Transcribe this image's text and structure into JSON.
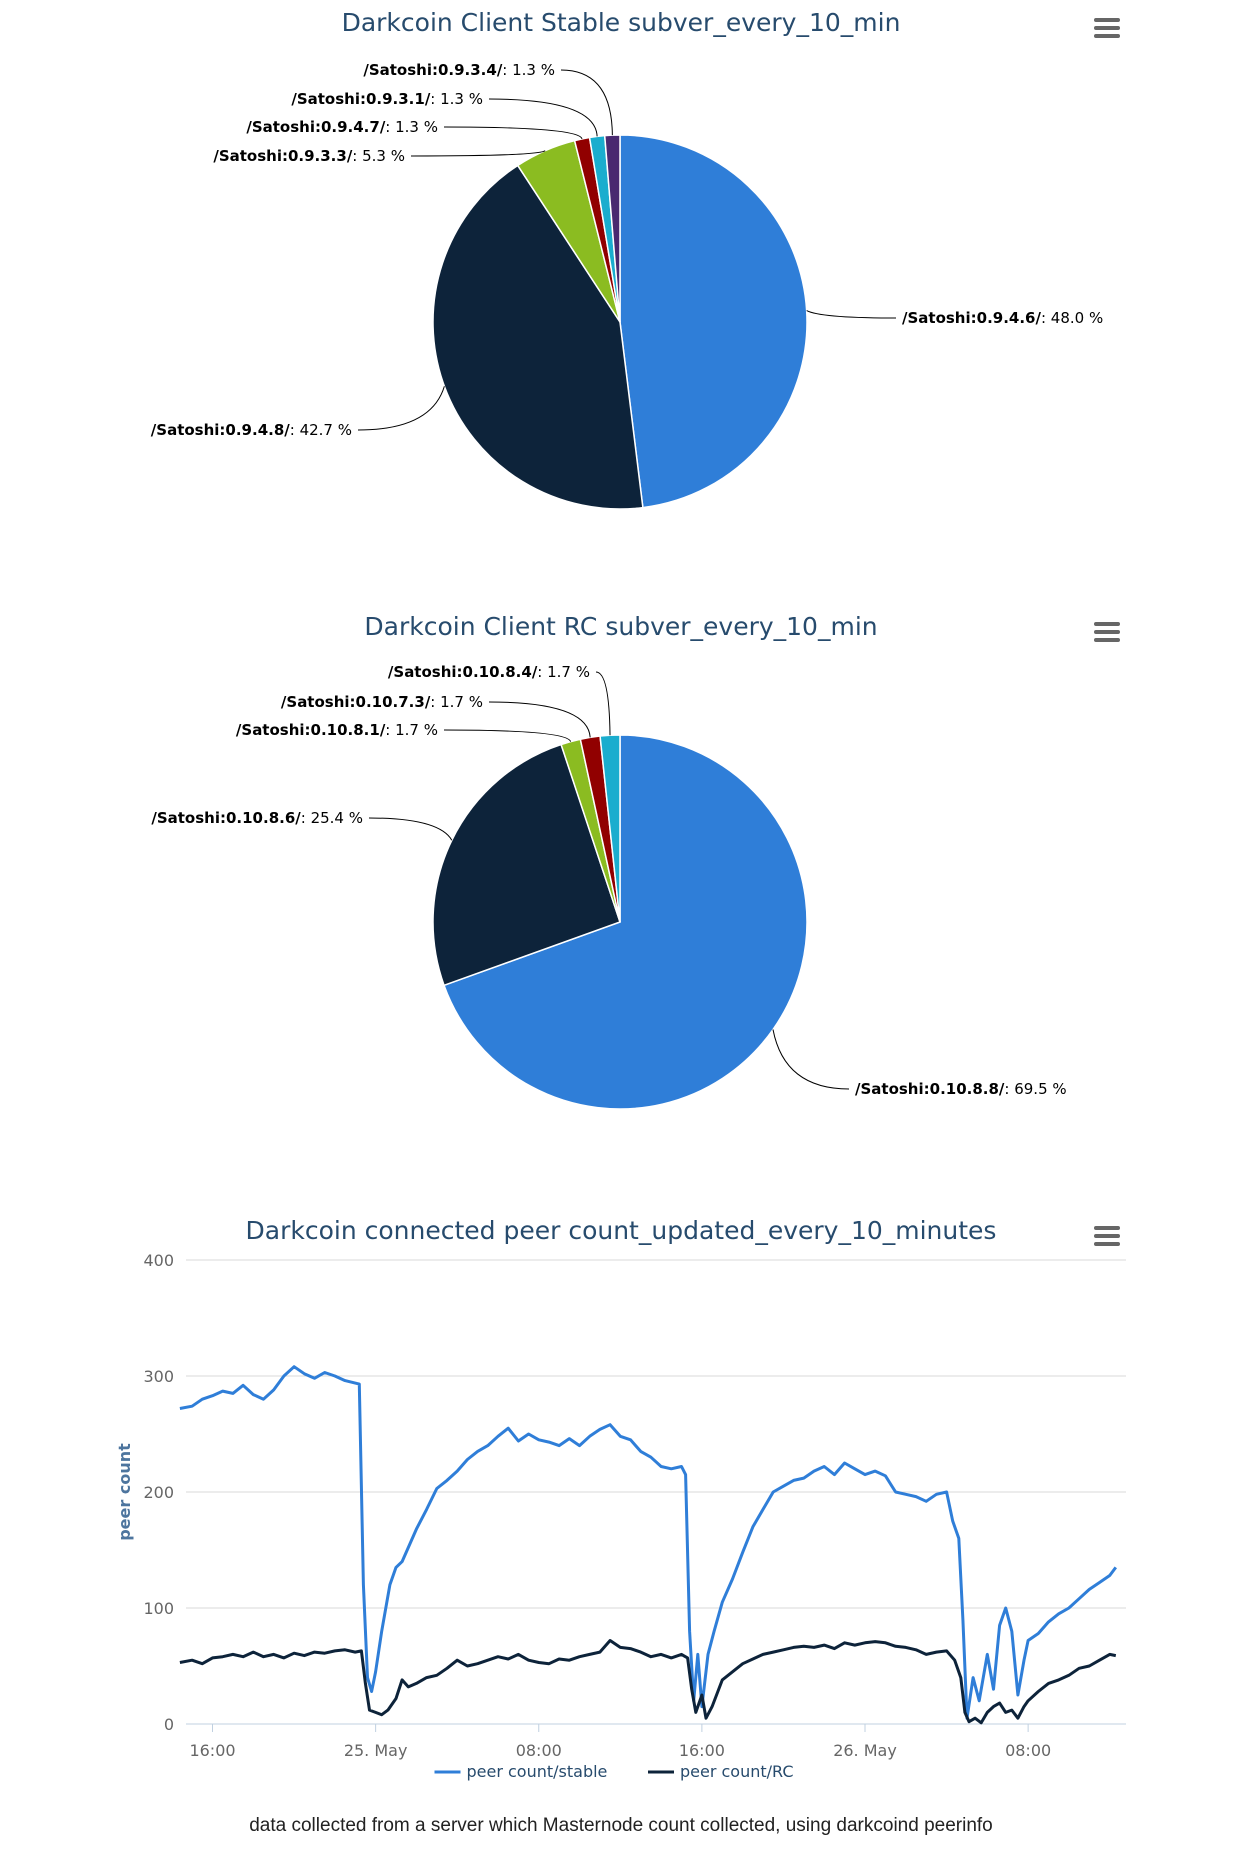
{
  "caption": "data collected from a server which Masternode count collected, using darkcoind peerinfo",
  "chart_data": [
    {
      "type": "pie",
      "title": "Darkcoin Client Stable subver_every_10_min",
      "labels": [
        "/Satoshi:0.9.4.6/",
        "/Satoshi:0.9.4.8/",
        "/Satoshi:0.9.3.3/",
        "/Satoshi:0.9.4.7/",
        "/Satoshi:0.9.3.1/",
        "/Satoshi:0.9.3.4/"
      ],
      "values": [
        48.0,
        42.7,
        5.3,
        1.3,
        1.3,
        1.3
      ],
      "value_labels": [
        "48.0 %",
        "42.7 %",
        "5.3 %",
        "1.3 %",
        "1.3 %",
        "1.3 %"
      ],
      "colors": [
        "#2f7ed8",
        "#0d233a",
        "#8bbc21",
        "#910000",
        "#1aadce",
        "#492970"
      ]
    },
    {
      "type": "pie",
      "title": "Darkcoin Client RC subver_every_10_min",
      "labels": [
        "/Satoshi:0.10.8.8/",
        "/Satoshi:0.10.8.6/",
        "/Satoshi:0.10.8.1/",
        "/Satoshi:0.10.7.3/",
        "/Satoshi:0.10.8.4/"
      ],
      "values": [
        69.5,
        25.4,
        1.7,
        1.7,
        1.7
      ],
      "value_labels": [
        "69.5 %",
        "25.4 %",
        "1.7 %",
        "1.7 %",
        "1.7 %"
      ],
      "colors": [
        "#2f7ed8",
        "#0d233a",
        "#8bbc21",
        "#910000",
        "#1aadce"
      ]
    },
    {
      "type": "line",
      "title": "Darkcoin connected peer count_updated_every_10_minutes",
      "ylabel": "peer count",
      "ylim": [
        0,
        400
      ],
      "yticks": [
        "0",
        "100",
        "200",
        "300",
        "400"
      ],
      "xlim": [
        -1.3,
        44.8
      ],
      "xticks": [
        {
          "v": 0,
          "label": "16:00"
        },
        {
          "v": 8,
          "label": "25. May"
        },
        {
          "v": 16,
          "label": "08:00"
        },
        {
          "v": 24,
          "label": "16:00"
        },
        {
          "v": 32,
          "label": "26. May"
        },
        {
          "v": 40,
          "label": "08:00"
        }
      ],
      "grid": true,
      "legend": "bottom-center",
      "series": [
        {
          "name": "peer count/stable",
          "color": "#2f7ed8",
          "points": [
            [
              -1.6,
              272
            ],
            [
              -1,
              274
            ],
            [
              -0.5,
              280
            ],
            [
              0,
              283
            ],
            [
              0.5,
              287
            ],
            [
              1,
              285
            ],
            [
              1.5,
              292
            ],
            [
              2,
              284
            ],
            [
              2.5,
              280
            ],
            [
              3,
              288
            ],
            [
              3.5,
              300
            ],
            [
              4,
              308
            ],
            [
              4.5,
              302
            ],
            [
              5,
              298
            ],
            [
              5.5,
              303
            ],
            [
              6,
              300
            ],
            [
              6.5,
              296
            ],
            [
              7.2,
              293
            ],
            [
              7.4,
              120
            ],
            [
              7.6,
              40
            ],
            [
              7.8,
              28
            ],
            [
              8,
              45
            ],
            [
              8.3,
              80
            ],
            [
              8.7,
              120
            ],
            [
              9,
              135
            ],
            [
              9.3,
              140
            ],
            [
              10,
              168
            ],
            [
              10.5,
              185
            ],
            [
              11,
              203
            ],
            [
              11.5,
              210
            ],
            [
              12,
              218
            ],
            [
              12.5,
              228
            ],
            [
              13,
              235
            ],
            [
              13.5,
              240
            ],
            [
              14,
              248
            ],
            [
              14.5,
              255
            ],
            [
              15,
              244
            ],
            [
              15.5,
              250
            ],
            [
              16,
              245
            ],
            [
              16.5,
              243
            ],
            [
              17,
              240
            ],
            [
              17.5,
              246
            ],
            [
              18,
              240
            ],
            [
              18.5,
              248
            ],
            [
              19,
              254
            ],
            [
              19.5,
              258
            ],
            [
              20,
              248
            ],
            [
              20.5,
              245
            ],
            [
              21,
              235
            ],
            [
              21.5,
              230
            ],
            [
              22,
              222
            ],
            [
              22.5,
              220
            ],
            [
              23,
              222
            ],
            [
              23.2,
              215
            ],
            [
              23.4,
              80
            ],
            [
              23.6,
              20
            ],
            [
              23.8,
              60
            ],
            [
              24,
              15
            ],
            [
              24.3,
              60
            ],
            [
              24.6,
              80
            ],
            [
              25,
              105
            ],
            [
              25.5,
              125
            ],
            [
              26,
              148
            ],
            [
              26.5,
              170
            ],
            [
              27,
              185
            ],
            [
              27.5,
              200
            ],
            [
              28,
              205
            ],
            [
              28.5,
              210
            ],
            [
              29,
              212
            ],
            [
              29.5,
              218
            ],
            [
              30,
              222
            ],
            [
              30.5,
              215
            ],
            [
              31,
              225
            ],
            [
              31.5,
              220
            ],
            [
              32,
              215
            ],
            [
              32.5,
              218
            ],
            [
              33,
              214
            ],
            [
              33.5,
              200
            ],
            [
              34,
              198
            ],
            [
              34.5,
              196
            ],
            [
              35,
              192
            ],
            [
              35.5,
              198
            ],
            [
              36,
              200
            ],
            [
              36.3,
              175
            ],
            [
              36.6,
              160
            ],
            [
              36.8,
              90
            ],
            [
              37,
              5
            ],
            [
              37.3,
              40
            ],
            [
              37.6,
              20
            ],
            [
              38,
              60
            ],
            [
              38.3,
              30
            ],
            [
              38.6,
              85
            ],
            [
              38.9,
              100
            ],
            [
              39.2,
              80
            ],
            [
              39.5,
              25
            ],
            [
              39.8,
              55
            ],
            [
              40,
              72
            ],
            [
              40.5,
              78
            ],
            [
              41,
              88
            ],
            [
              41.5,
              95
            ],
            [
              42,
              100
            ],
            [
              42.5,
              108
            ],
            [
              43,
              116
            ],
            [
              43.5,
              122
            ],
            [
              44,
              128
            ],
            [
              44.3,
              135
            ]
          ]
        },
        {
          "name": "peer count/RC",
          "color": "#0d233a",
          "points": [
            [
              -1.6,
              53
            ],
            [
              -1,
              55
            ],
            [
              -0.5,
              52
            ],
            [
              0,
              57
            ],
            [
              0.5,
              58
            ],
            [
              1,
              60
            ],
            [
              1.5,
              58
            ],
            [
              2,
              62
            ],
            [
              2.5,
              58
            ],
            [
              3,
              60
            ],
            [
              3.5,
              57
            ],
            [
              4,
              61
            ],
            [
              4.5,
              59
            ],
            [
              5,
              62
            ],
            [
              5.5,
              61
            ],
            [
              6,
              63
            ],
            [
              6.5,
              64
            ],
            [
              7,
              62
            ],
            [
              7.3,
              63
            ],
            [
              7.5,
              35
            ],
            [
              7.7,
              12
            ],
            [
              8,
              10
            ],
            [
              8.3,
              8
            ],
            [
              8.6,
              12
            ],
            [
              9,
              22
            ],
            [
              9.3,
              38
            ],
            [
              9.6,
              32
            ],
            [
              10,
              35
            ],
            [
              10.5,
              40
            ],
            [
              11,
              42
            ],
            [
              11.5,
              48
            ],
            [
              12,
              55
            ],
            [
              12.5,
              50
            ],
            [
              13,
              52
            ],
            [
              13.5,
              55
            ],
            [
              14,
              58
            ],
            [
              14.5,
              56
            ],
            [
              15,
              60
            ],
            [
              15.5,
              55
            ],
            [
              16,
              53
            ],
            [
              16.5,
              52
            ],
            [
              17,
              56
            ],
            [
              17.5,
              55
            ],
            [
              18,
              58
            ],
            [
              18.5,
              60
            ],
            [
              19,
              62
            ],
            [
              19.5,
              72
            ],
            [
              20,
              66
            ],
            [
              20.5,
              65
            ],
            [
              21,
              62
            ],
            [
              21.5,
              58
            ],
            [
              22,
              60
            ],
            [
              22.5,
              57
            ],
            [
              23,
              60
            ],
            [
              23.3,
              57
            ],
            [
              23.5,
              30
            ],
            [
              23.7,
              10
            ],
            [
              24,
              25
            ],
            [
              24.2,
              5
            ],
            [
              24.5,
              15
            ],
            [
              25,
              38
            ],
            [
              25.5,
              45
            ],
            [
              26,
              52
            ],
            [
              26.5,
              56
            ],
            [
              27,
              60
            ],
            [
              27.5,
              62
            ],
            [
              28,
              64
            ],
            [
              28.5,
              66
            ],
            [
              29,
              67
            ],
            [
              29.5,
              66
            ],
            [
              30,
              68
            ],
            [
              30.5,
              65
            ],
            [
              31,
              70
            ],
            [
              31.5,
              68
            ],
            [
              32,
              70
            ],
            [
              32.5,
              71
            ],
            [
              33,
              70
            ],
            [
              33.5,
              67
            ],
            [
              34,
              66
            ],
            [
              34.5,
              64
            ],
            [
              35,
              60
            ],
            [
              35.5,
              62
            ],
            [
              36,
              63
            ],
            [
              36.4,
              55
            ],
            [
              36.7,
              40
            ],
            [
              36.9,
              10
            ],
            [
              37.1,
              2
            ],
            [
              37.4,
              5
            ],
            [
              37.7,
              1
            ],
            [
              38,
              10
            ],
            [
              38.3,
              15
            ],
            [
              38.6,
              18
            ],
            [
              38.9,
              10
            ],
            [
              39.2,
              12
            ],
            [
              39.5,
              5
            ],
            [
              39.8,
              15
            ],
            [
              40,
              20
            ],
            [
              40.5,
              28
            ],
            [
              41,
              35
            ],
            [
              41.5,
              38
            ],
            [
              42,
              42
            ],
            [
              42.5,
              48
            ],
            [
              43,
              50
            ],
            [
              43.5,
              55
            ],
            [
              44,
              60
            ],
            [
              44.3,
              59
            ]
          ]
        }
      ]
    }
  ]
}
